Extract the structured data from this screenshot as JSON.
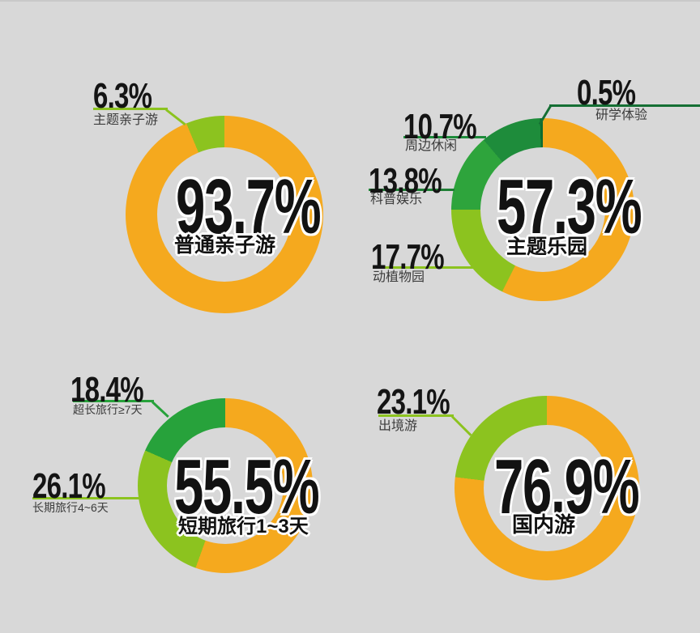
{
  "background_color": "#d8d8d8",
  "palette": {
    "orange": "#f5a91e",
    "light_green": "#8cc31f",
    "mid_green": "#2ea43c",
    "forest_green": "#1e8c3b",
    "dark_green": "#0d6b31",
    "kelly_green": "#27a23b"
  },
  "chart_data": [
    {
      "type": "pie",
      "variant": "donut",
      "start_angle_deg": 0,
      "direction": "clockwise",
      "center_value": "93.7%",
      "center_label": "普通亲子游",
      "segments": [
        {
          "label": "普通亲子游",
          "value": 93.7,
          "color": "#f5a91e"
        },
        {
          "label": "主题亲子游",
          "value": 6.3,
          "color": "#8cc31f"
        }
      ],
      "callouts": [
        {
          "value": "6.3%",
          "label": "主题亲子游",
          "line_color": "#8cc31f"
        }
      ]
    },
    {
      "type": "pie",
      "variant": "donut",
      "start_angle_deg": 0,
      "direction": "clockwise",
      "center_value": "57.3%",
      "center_label": "主题乐园",
      "segments": [
        {
          "label": "主题乐园",
          "value": 57.3,
          "color": "#f5a91e"
        },
        {
          "label": "动植物园",
          "value": 17.7,
          "color": "#8cc31f"
        },
        {
          "label": "科普娱乐",
          "value": 13.8,
          "color": "#2ea43c"
        },
        {
          "label": "周边休闲",
          "value": 10.7,
          "color": "#1e8c3b"
        },
        {
          "label": "研学体验",
          "value": 0.5,
          "color": "#0d6b31"
        }
      ],
      "callouts": [
        {
          "value": "0.5%",
          "label": "研学体验",
          "line_color": "#156f34"
        },
        {
          "value": "10.7%",
          "label": "周边休闲",
          "line_color": "#1e8c3b"
        },
        {
          "value": "13.8%",
          "label": "科普娱乐",
          "line_color": "#1f7f35"
        },
        {
          "value": "17.7%",
          "label": "动植物园",
          "line_color": "#8cc31f"
        }
      ]
    },
    {
      "type": "pie",
      "variant": "donut",
      "start_angle_deg": 0,
      "direction": "clockwise",
      "center_value": "55.5%",
      "center_label": "短期旅行1~3天",
      "segments": [
        {
          "label": "短期旅行1~3天",
          "value": 55.5,
          "color": "#f5a91e"
        },
        {
          "label": "长期旅行4~6天",
          "value": 26.1,
          "color": "#8cc31f"
        },
        {
          "label": "超长旅行≥7天",
          "value": 18.4,
          "color": "#27a23b"
        }
      ],
      "callouts": [
        {
          "value": "18.4%",
          "label": "超长旅行≥7天",
          "line_color": "#27a23b"
        },
        {
          "value": "26.1%",
          "label": "长期旅行4~6天",
          "line_color": "#8cc31f"
        }
      ]
    },
    {
      "type": "pie",
      "variant": "donut",
      "start_angle_deg": 0,
      "direction": "clockwise",
      "center_value": "76.9%",
      "center_label": "国内游",
      "segments": [
        {
          "label": "国内游",
          "value": 76.9,
          "color": "#f5a91e"
        },
        {
          "label": "出境游",
          "value": 23.1,
          "color": "#8cc31f"
        }
      ],
      "callouts": [
        {
          "value": "23.1%",
          "label": "出境游",
          "line_color": "#8cc31f"
        }
      ]
    }
  ]
}
